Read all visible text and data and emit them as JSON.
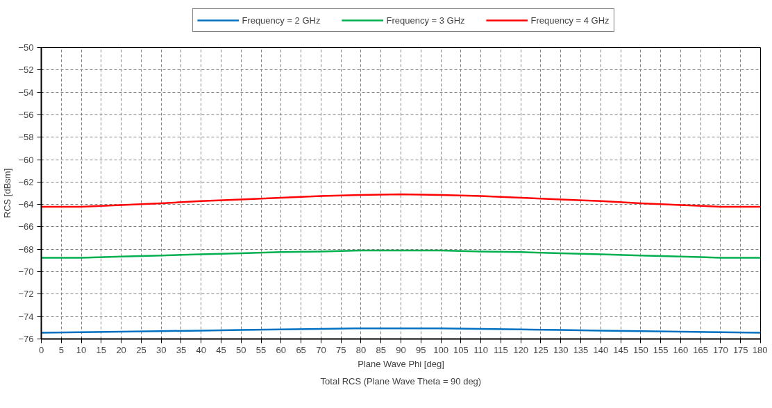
{
  "chart_data": {
    "type": "line",
    "title": "Total RCS (Plane Wave Theta = 90 deg)",
    "xlabel": "Plane Wave Phi [deg]",
    "ylabel": "RCS [dBsm]",
    "x": [
      0,
      10,
      20,
      30,
      40,
      50,
      60,
      70,
      80,
      90,
      100,
      110,
      120,
      130,
      140,
      150,
      160,
      170,
      180
    ],
    "series": [
      {
        "name": "Frequency = 2 GHz",
        "color": "#0070c0",
        "values": [
          -75.45,
          -75.4,
          -75.35,
          -75.3,
          -75.25,
          -75.2,
          -75.15,
          -75.1,
          -75.05,
          -75.05,
          -75.05,
          -75.1,
          -75.15,
          -75.2,
          -75.25,
          -75.3,
          -75.35,
          -75.4,
          -75.45
        ]
      },
      {
        "name": "Frequency = 3 GHz",
        "color": "#00b050",
        "values": [
          -68.75,
          -68.75,
          -68.65,
          -68.55,
          -68.45,
          -68.35,
          -68.25,
          -68.2,
          -68.1,
          -68.1,
          -68.1,
          -68.2,
          -68.25,
          -68.35,
          -68.45,
          -68.55,
          -68.65,
          -68.75,
          -68.75
        ]
      },
      {
        "name": "Frequency = 4 GHz",
        "color": "#ff0000",
        "values": [
          -64.2,
          -64.2,
          -64.05,
          -63.9,
          -63.7,
          -63.55,
          -63.4,
          -63.25,
          -63.15,
          -63.1,
          -63.15,
          -63.25,
          -63.4,
          -63.55,
          -63.7,
          -63.9,
          -64.05,
          -64.2,
          -64.2
        ]
      }
    ],
    "xlim": [
      0,
      180
    ],
    "xticks": [
      0,
      5,
      10,
      15,
      20,
      25,
      30,
      35,
      40,
      45,
      50,
      55,
      60,
      65,
      70,
      75,
      80,
      85,
      90,
      95,
      100,
      105,
      110,
      115,
      120,
      125,
      130,
      135,
      140,
      145,
      150,
      155,
      160,
      165,
      170,
      175,
      180
    ],
    "ylim": [
      -76,
      -50
    ],
    "yticks": [
      -76,
      -74,
      -72,
      -70,
      -68,
      -66,
      -64,
      -62,
      -60,
      -58,
      -56,
      -54,
      -52,
      -50
    ],
    "grid": true,
    "legend": "top",
    "marker": "none",
    "line_style": "solid"
  }
}
